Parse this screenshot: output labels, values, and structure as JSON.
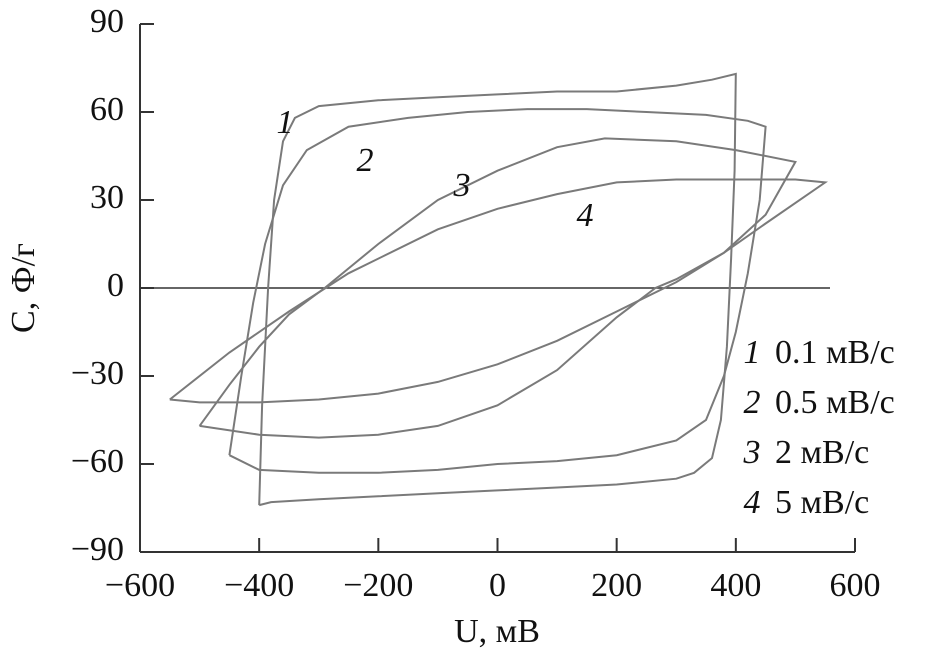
{
  "chart_data": {
    "type": "line",
    "xlabel": "U, мВ",
    "ylabel": "C, Ф/г",
    "xlim": [
      -600,
      600
    ],
    "xticks": [
      {
        "value": -600,
        "label": "−600"
      },
      {
        "value": -400,
        "label": "−400"
      },
      {
        "value": -200,
        "label": "−200"
      },
      0,
      200,
      400,
      600
    ],
    "ylim": [
      -90,
      90
    ],
    "yticks": [
      {
        "value": -90,
        "label": "−90"
      },
      {
        "value": -60,
        "label": "−60"
      },
      {
        "value": -30,
        "label": "−30"
      },
      0,
      30,
      60,
      90
    ],
    "grid": false,
    "series": [
      {
        "label": "1",
        "name": "0.1 мВ/с",
        "color": "#7a7a7a",
        "x": [
          -400,
          -395,
          -385,
          -375,
          -360,
          -340,
          -300,
          -200,
          -100,
          0,
          100,
          200,
          300,
          360,
          400,
          398,
          392,
          385,
          375,
          360,
          330,
          300,
          200,
          100,
          0,
          -100,
          -200,
          -300,
          -380,
          -400
        ],
        "y": [
          -74,
          -40,
          0,
          30,
          50,
          58,
          62,
          64,
          65,
          66,
          67,
          67,
          69,
          71,
          73,
          40,
          10,
          -20,
          -45,
          -58,
          -63,
          -65,
          -67,
          -68,
          -69,
          -70,
          -71,
          -72,
          -73,
          -74
        ]
      },
      {
        "label": "2",
        "name": "0.5 мВ/с",
        "color": "#7a7a7a",
        "x": [
          -450,
          -430,
          -410,
          -390,
          -360,
          -320,
          -250,
          -150,
          -50,
          50,
          150,
          250,
          350,
          420,
          450,
          440,
          420,
          400,
          380,
          350,
          300,
          200,
          100,
          0,
          -100,
          -200,
          -300,
          -400,
          -450
        ],
        "y": [
          -57,
          -30,
          -5,
          15,
          35,
          47,
          55,
          58,
          60,
          61,
          61,
          60,
          59,
          57,
          55,
          30,
          5,
          -15,
          -30,
          -45,
          -52,
          -57,
          -59,
          -60,
          -62,
          -63,
          -63,
          -62,
          -57
        ]
      },
      {
        "label": "3",
        "name": "2 мВ/с",
        "color": "#7a7a7a",
        "x": [
          -500,
          -450,
          -400,
          -350,
          -290,
          -200,
          -100,
          0,
          100,
          180,
          300,
          400,
          500,
          450,
          380,
          300,
          265,
          200,
          100,
          0,
          -100,
          -200,
          -300,
          -400,
          -500
        ],
        "y": [
          -47,
          -33,
          -20,
          -9,
          0,
          15,
          30,
          40,
          48,
          51,
          50,
          47,
          43,
          25,
          12,
          3,
          0,
          -10,
          -28,
          -40,
          -47,
          -50,
          -51,
          -50,
          -47
        ]
      },
      {
        "label": "4",
        "name": "5 мВ/с",
        "color": "#7a7a7a",
        "x": [
          -550,
          -450,
          -350,
          -250,
          -100,
          0,
          100,
          200,
          300,
          400,
          500,
          550,
          450,
          380,
          300,
          200,
          100,
          0,
          -100,
          -200,
          -300,
          -400,
          -500,
          -550
        ],
        "y": [
          -38,
          -22,
          -8,
          5,
          20,
          27,
          32,
          36,
          37,
          37,
          37,
          36,
          22,
          12,
          2,
          -8,
          -18,
          -26,
          -32,
          -36,
          -38,
          -39,
          -39,
          -38
        ]
      }
    ]
  }
}
